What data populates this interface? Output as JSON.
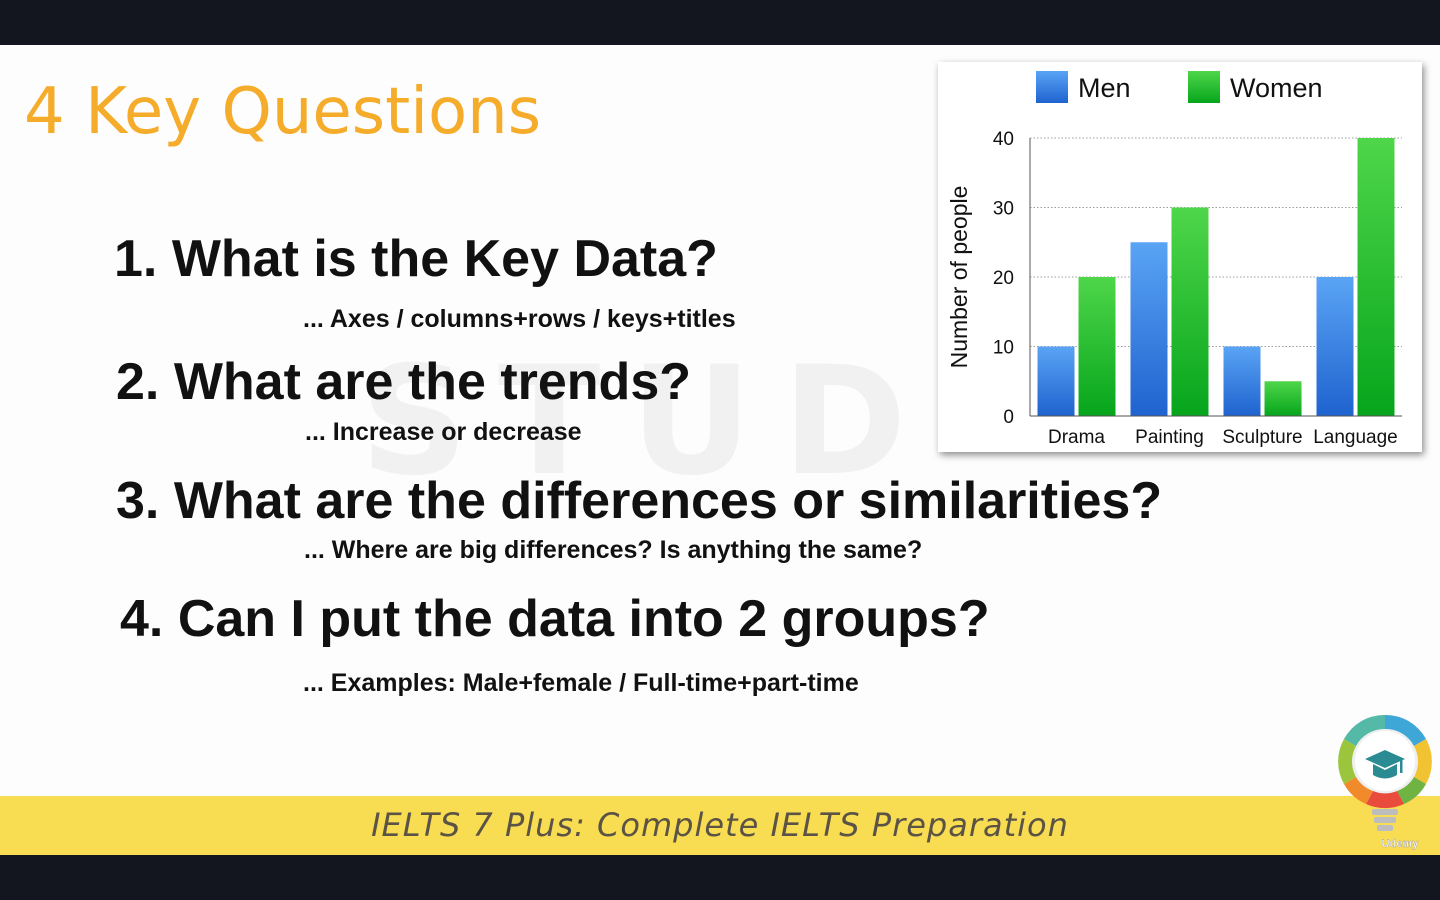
{
  "slide": {
    "title": "4 Key Questions",
    "watermark": "STUD",
    "questions": [
      {
        "main": "1. What is the Key Data?",
        "sub": "... Axes / columns+rows / keys+titles"
      },
      {
        "main": "2. What are the trends?",
        "sub": "... Increase or decrease"
      },
      {
        "main": "3. What are the differences or similarities?",
        "sub": "... Where are big differences? Is anything the same?"
      },
      {
        "main": "4. Can I put the data into 2 groups?",
        "sub": "... Examples: Male+female / Full-time+part-time"
      }
    ],
    "footer": "IELTS 7 Plus: Complete IELTS Preparation",
    "logo_label": "Udemy"
  },
  "chart_data": {
    "type": "bar",
    "categories": [
      "Drama",
      "Painting",
      "Sculpture",
      "Language"
    ],
    "series": [
      {
        "name": "Men",
        "values": [
          10,
          25,
          10,
          20
        ],
        "color": "#2f7de0"
      },
      {
        "name": "Women",
        "values": [
          20,
          30,
          5,
          40
        ],
        "color": "#1fbf1f"
      }
    ],
    "ylabel": "Number of people",
    "yticks": [
      0,
      10,
      20,
      30,
      40
    ],
    "ylim": [
      0,
      40
    ],
    "grid": true,
    "legend": "top"
  }
}
